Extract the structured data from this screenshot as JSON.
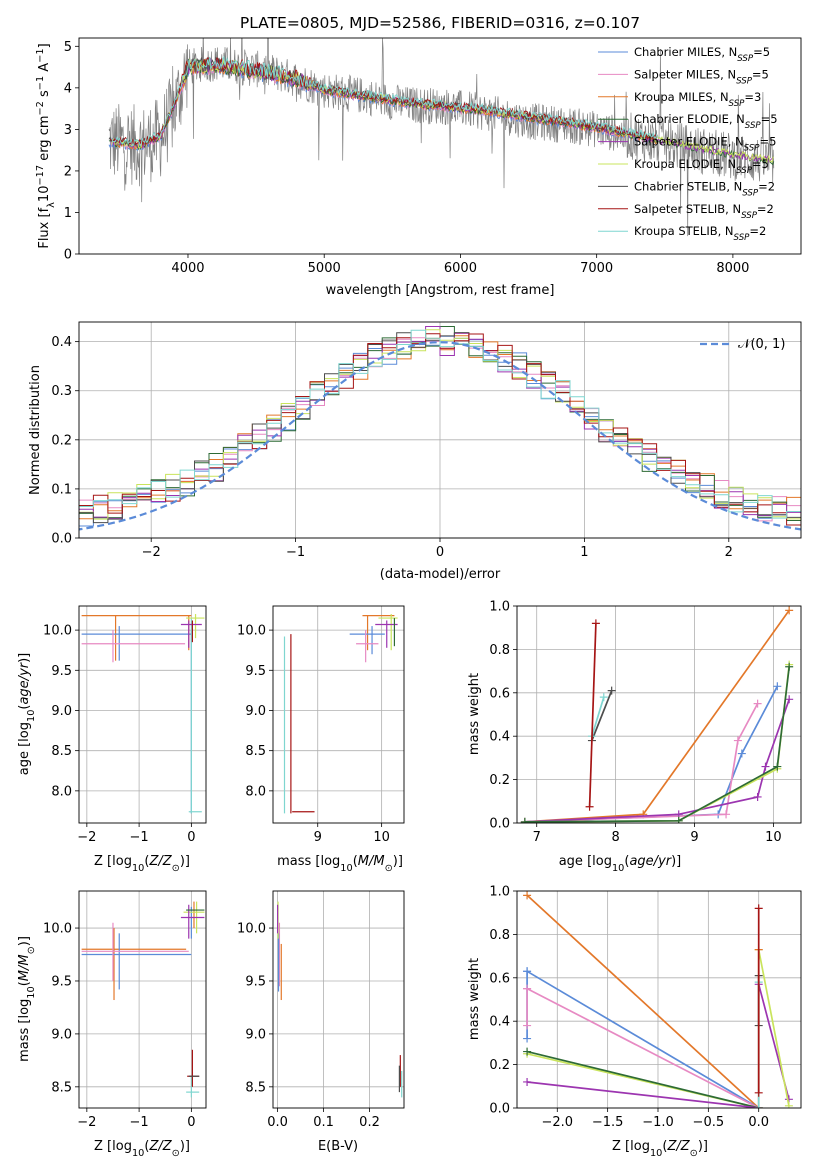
{
  "figure": {
    "title": "PLATE=0805, MJD=52586, FIBERID=0316, z=0.107"
  },
  "colors": {
    "Chabrier MILES": "#5b8bd8",
    "Salpeter MILES": "#e78ac3",
    "Kroupa MILES": "#e3782a",
    "Chabrier ELODIE": "#2e6b36",
    "Salpeter ELODIE": "#9c35b0",
    "Kroupa ELODIE": "#c9e45c",
    "Chabrier STELIB": "#4d4d4d",
    "Salpeter STELIB": "#a61515",
    "Kroupa STELIB": "#7fd6d0",
    "gaussian": "#5b8bd8",
    "observed": "#808080"
  },
  "legend": [
    {
      "name": "Chabrier MILES",
      "nssp": "5"
    },
    {
      "name": "Salpeter MILES",
      "nssp": "5"
    },
    {
      "name": "Kroupa MILES",
      "nssp": "3"
    },
    {
      "name": "Chabrier ELODIE",
      "nssp": "5"
    },
    {
      "name": "Salpeter ELODIE",
      "nssp": "5"
    },
    {
      "name": "Kroupa ELODIE",
      "nssp": "5"
    },
    {
      "name": "Chabrier STELIB",
      "nssp": "2"
    },
    {
      "name": "Salpeter STELIB",
      "nssp": "2"
    },
    {
      "name": "Kroupa STELIB",
      "nssp": "2"
    }
  ],
  "chart_data": [
    {
      "id": "spectrum",
      "type": "line",
      "xlabel": "wavelength [Angstrom, rest frame]",
      "ylabel": "Flux [f_λ 10^-17 erg cm^-2 s^-1 A^-1]",
      "xlim": [
        3200,
        8500
      ],
      "ylim": [
        0,
        5.2
      ],
      "xticks": [
        4000,
        5000,
        6000,
        7000,
        8000
      ],
      "yticks": [
        0,
        1,
        2,
        3,
        4,
        5
      ],
      "grid": false,
      "legend_position": "top-right",
      "observed_anchors": [
        [
          3420,
          2.7
        ],
        [
          3550,
          2.65
        ],
        [
          3650,
          2.6
        ],
        [
          3800,
          2.8
        ],
        [
          3900,
          3.5
        ],
        [
          4000,
          4.5
        ],
        [
          4200,
          4.6
        ],
        [
          4400,
          4.5
        ],
        [
          4600,
          4.4
        ],
        [
          4800,
          4.2
        ],
        [
          5000,
          3.95
        ],
        [
          5300,
          3.8
        ],
        [
          5600,
          3.6
        ],
        [
          5900,
          3.55
        ],
        [
          6200,
          3.4
        ],
        [
          6500,
          3.2
        ],
        [
          6800,
          3.1
        ],
        [
          7000,
          3.0
        ],
        [
          7300,
          2.8
        ],
        [
          7600,
          2.6
        ],
        [
          7900,
          2.4
        ],
        [
          8100,
          2.3
        ],
        [
          8300,
          2.2
        ]
      ],
      "model_anchors": [
        [
          3420,
          2.7
        ],
        [
          3520,
          2.68
        ],
        [
          3650,
          2.62
        ],
        [
          3800,
          2.85
        ],
        [
          3900,
          3.6
        ],
        [
          4000,
          4.5
        ],
        [
          4200,
          4.55
        ],
        [
          4400,
          4.45
        ],
        [
          4600,
          4.35
        ],
        [
          4800,
          4.2
        ],
        [
          5000,
          3.95
        ],
        [
          5300,
          3.8
        ],
        [
          5600,
          3.65
        ],
        [
          5900,
          3.55
        ],
        [
          6200,
          3.45
        ],
        [
          6500,
          3.3
        ],
        [
          6800,
          3.15
        ],
        [
          7000,
          3.05
        ],
        [
          7300,
          2.85
        ],
        [
          7600,
          2.65
        ],
        [
          7900,
          2.45
        ],
        [
          8100,
          2.35
        ],
        [
          8300,
          2.25
        ]
      ]
    },
    {
      "id": "residuals",
      "type": "line",
      "xlabel": "(data-model)/error",
      "ylabel": "Normed distribution",
      "xlim": [
        -2.5,
        2.5
      ],
      "ylim": [
        0,
        0.44
      ],
      "xticks": [
        -2,
        -1,
        0,
        1,
        2
      ],
      "yticks": [
        0.0,
        0.1,
        0.2,
        0.3,
        0.4
      ],
      "grid": true,
      "legend": [
        {
          "name": "𝒩(0, 1)",
          "style": "dashed"
        }
      ],
      "legend_position": "top-right",
      "bin_width": 0.1
    },
    {
      "id": "age-vs-Z",
      "type": "scatter",
      "xlabel": "Z [log10(Z/Z⊙)]",
      "ylabel": "age [log10(age/yr)]",
      "xlim": [
        -2.15,
        0.28
      ],
      "ylim": [
        7.6,
        10.3
      ],
      "xticks": [
        -2,
        -1,
        0
      ],
      "yticks": [
        8.0,
        8.5,
        9.0,
        9.5,
        10.0
      ],
      "grid": true,
      "lines": [
        {
          "color": "#e3782a",
          "h": [
            [
              -2.1,
              0.0,
              10.18
            ]
          ],
          "v": [
            [
              -1.45,
              9.62,
              10.18
            ],
            [
              -0.05,
              9.75,
              10.18
            ]
          ]
        },
        {
          "color": "#5b8bd8",
          "h": [
            [
              -2.1,
              0.0,
              9.95
            ]
          ],
          "v": [
            [
              -1.38,
              9.62,
              10.05
            ],
            [
              0.0,
              7.72,
              10.0
            ]
          ]
        },
        {
          "color": "#e78ac3",
          "h": [
            [
              -2.1,
              -0.12,
              9.83
            ]
          ],
          "v": [
            [
              -1.5,
              9.6,
              10.0
            ]
          ]
        },
        {
          "color": "#7fd6d0",
          "h": [
            [
              -0.05,
              0.2,
              7.74
            ]
          ],
          "v": [
            [
              0.0,
              7.72,
              10.15
            ]
          ]
        },
        {
          "color": "#c9e45c",
          "h": [
            [
              -0.1,
              0.25,
              10.15
            ]
          ],
          "v": [
            [
              0.08,
              9.9,
              10.2
            ]
          ]
        },
        {
          "color": "#9c35b0",
          "h": [
            [
              -0.2,
              0.2,
              10.07
            ]
          ],
          "v": [
            [
              -0.05,
              9.78,
              10.12
            ]
          ]
        },
        {
          "color": "#a61515",
          "v": [
            [
              0.02,
              9.85,
              10.12
            ]
          ]
        }
      ]
    },
    {
      "id": "age-vs-mass",
      "type": "scatter",
      "xlabel": "mass [log10(M/M⊙)]",
      "ylabel": "",
      "xlim": [
        8.3,
        10.35
      ],
      "ylim": [
        7.6,
        10.3
      ],
      "xticks": [
        9,
        10
      ],
      "yticks": [
        8.0,
        8.5,
        9.0,
        9.5,
        10.0
      ],
      "grid": true,
      "lines": [
        {
          "color": "#e3782a",
          "h": [
            [
              9.7,
              10.2,
              10.18
            ]
          ],
          "v": [
            [
              9.78,
              9.75,
              10.18
            ]
          ]
        },
        {
          "color": "#5b8bd8",
          "h": [
            [
              9.5,
              10.05,
              9.95
            ]
          ],
          "v": [
            [
              9.85,
              9.7,
              10.05
            ]
          ]
        },
        {
          "color": "#e78ac3",
          "h": [
            [
              9.6,
              9.95,
              9.83
            ]
          ],
          "v": [
            [
              9.75,
              9.6,
              10.0
            ]
          ]
        },
        {
          "color": "#7fd6d0",
          "v": [
            [
              8.48,
              7.72,
              9.92
            ]
          ]
        },
        {
          "color": "#a61515",
          "h": [
            [
              8.6,
              8.95,
              7.74
            ]
          ],
          "v": [
            [
              8.58,
              7.72,
              9.95
            ]
          ]
        },
        {
          "color": "#c9e45c",
          "h": [
            [
              9.95,
              10.25,
              10.15
            ]
          ],
          "v": [
            [
              10.15,
              9.75,
              10.2
            ]
          ]
        },
        {
          "color": "#9c35b0",
          "h": [
            [
              9.9,
              10.25,
              10.07
            ]
          ],
          "v": [
            [
              10.08,
              9.78,
              10.12
            ]
          ]
        },
        {
          "color": "#2e6b36",
          "v": [
            [
              10.2,
              9.8,
              10.15
            ]
          ]
        }
      ]
    },
    {
      "id": "massweight-vs-age",
      "type": "line",
      "xlabel": "age [log10(age/yr)]",
      "ylabel": "mass weight",
      "xlim": [
        6.75,
        10.35
      ],
      "ylim": [
        0,
        1.0
      ],
      "xticks": [
        7,
        8,
        9,
        10
      ],
      "yticks": [
        0.0,
        0.2,
        0.4,
        0.6,
        0.8,
        1.0
      ],
      "grid": true,
      "series": [
        {
          "color": "#e3782a",
          "x": [
            6.85,
            8.35,
            10.2
          ],
          "y": [
            0.005,
            0.04,
            0.98
          ]
        },
        {
          "color": "#5b8bd8",
          "x": [
            6.85,
            9.3,
            9.6,
            10.05
          ],
          "y": [
            0.005,
            0.04,
            0.32,
            0.63
          ]
        },
        {
          "color": "#e78ac3",
          "x": [
            6.85,
            9.4,
            9.55,
            9.8
          ],
          "y": [
            0.005,
            0.04,
            0.38,
            0.55
          ]
        },
        {
          "color": "#9c35b0",
          "x": [
            6.85,
            8.8,
            9.8,
            9.9,
            10.2
          ],
          "y": [
            0.005,
            0.04,
            0.12,
            0.26,
            0.57
          ]
        },
        {
          "color": "#c9e45c",
          "x": [
            6.85,
            8.8,
            10.05,
            10.2
          ],
          "y": [
            0.005,
            0.01,
            0.25,
            0.73
          ]
        },
        {
          "color": "#2e6b36",
          "x": [
            6.85,
            8.8,
            10.05,
            10.2
          ],
          "y": [
            0.005,
            0.01,
            0.26,
            0.72
          ]
        },
        {
          "color": "#4d4d4d",
          "x": [
            7.7,
            7.95
          ],
          "y": [
            0.38,
            0.61
          ]
        },
        {
          "color": "#7fd6d0",
          "x": [
            7.7,
            7.85
          ],
          "y": [
            0.4,
            0.58
          ]
        },
        {
          "color": "#a61515",
          "x": [
            7.67,
            7.75
          ],
          "y": [
            0.075,
            0.92
          ]
        }
      ]
    },
    {
      "id": "mass-vs-Z",
      "type": "scatter",
      "xlabel": "Z [log10(Z/Z⊙)]",
      "ylabel": "mass [log10(M/M⊙)]",
      "xlim": [
        -2.15,
        0.28
      ],
      "ylim": [
        8.3,
        10.35
      ],
      "xticks": [
        -2,
        -1,
        0
      ],
      "yticks": [
        8.5,
        9.0,
        9.5,
        10.0
      ],
      "grid": true,
      "lines": [
        {
          "color": "#e3782a",
          "h": [
            [
              -2.1,
              -0.1,
              9.8
            ]
          ],
          "v": [
            [
              -1.48,
              9.32,
              10.0
            ],
            [
              0.05,
              10.0,
              10.25
            ]
          ]
        },
        {
          "color": "#5b8bd8",
          "h": [
            [
              -2.1,
              0.0,
              9.75
            ]
          ],
          "v": [
            [
              -1.38,
              9.42,
              9.95
            ],
            [
              0.0,
              9.9,
              10.2
            ]
          ]
        },
        {
          "color": "#e78ac3",
          "h": [
            [
              -2.1,
              -0.05,
              9.78
            ]
          ],
          "v": [
            [
              -1.5,
              9.5,
              10.05
            ]
          ]
        },
        {
          "color": "#7fd6d0",
          "h": [
            [
              -0.1,
              0.15,
              8.45
            ]
          ],
          "v": [
            [
              0.0,
              8.4,
              8.6
            ]
          ]
        },
        {
          "color": "#a61515",
          "h": [
            [
              -0.08,
              0.15,
              8.6
            ]
          ],
          "v": [
            [
              0.02,
              8.5,
              8.85
            ]
          ]
        },
        {
          "color": "#4d4d4d",
          "h": [
            [
              -0.05,
              0.15,
              8.6
            ]
          ]
        },
        {
          "color": "#c9e45c",
          "h": [
            [
              -0.15,
              0.25,
              10.15
            ]
          ],
          "v": [
            [
              0.1,
              9.95,
              10.25
            ]
          ]
        },
        {
          "color": "#9c35b0",
          "h": [
            [
              -0.2,
              0.25,
              10.1
            ]
          ],
          "v": [
            [
              -0.05,
              9.9,
              10.22
            ]
          ]
        },
        {
          "color": "#2e6b36",
          "h": [
            [
              -0.1,
              0.25,
              10.17
            ]
          ]
        }
      ]
    },
    {
      "id": "mass-vs-ebv",
      "type": "scatter",
      "xlabel": "E(B-V)",
      "ylabel": "",
      "xlim": [
        -0.01,
        0.275
      ],
      "ylim": [
        8.3,
        10.35
      ],
      "xticks": [
        0.0,
        0.1,
        0.2
      ],
      "yticks": [
        8.5,
        9.0,
        9.5,
        10.0
      ],
      "grid": true,
      "lines": [
        {
          "color": "#e3782a",
          "v": [
            [
              0.008,
              9.32,
              9.85
            ]
          ]
        },
        {
          "color": "#e78ac3",
          "v": [
            [
              0.004,
              9.45,
              10.05
            ]
          ]
        },
        {
          "color": "#5b8bd8",
          "v": [
            [
              0.002,
              9.4,
              9.95
            ]
          ]
        },
        {
          "color": "#c9e45c",
          "v": [
            [
              0.001,
              9.9,
              10.25
            ]
          ]
        },
        {
          "color": "#9c35b0",
          "v": [
            [
              0.0,
              9.95,
              10.22
            ]
          ]
        },
        {
          "color": "#a61515",
          "v": [
            [
              0.267,
              8.5,
              8.8
            ]
          ]
        },
        {
          "color": "#7fd6d0",
          "v": [
            [
              0.27,
              8.4,
              8.65
            ]
          ]
        },
        {
          "color": "#4d4d4d",
          "v": [
            [
              0.265,
              8.45,
              8.7
            ]
          ]
        }
      ]
    },
    {
      "id": "massweight-vs-Z",
      "type": "line",
      "xlabel": "Z [log10(Z/Z⊙)]",
      "ylabel": "mass weight",
      "xlim": [
        -2.4,
        0.42
      ],
      "ylim": [
        0,
        1.0
      ],
      "xticks": [
        -2.0,
        -1.5,
        -1.0,
        -0.5,
        0.0
      ],
      "yticks": [
        0.0,
        0.2,
        0.4,
        0.6,
        0.8,
        1.0
      ],
      "grid": true,
      "series": [
        {
          "color": "#e3782a",
          "x": [
            -2.3,
            0.0
          ],
          "y": [
            0.98,
            0.0
          ]
        },
        {
          "color": "#5b8bd8",
          "x": [
            -2.3,
            0.0
          ],
          "y": [
            0.63,
            0.0
          ]
        },
        {
          "color": "#e78ac3",
          "x": [
            -2.3,
            0.0
          ],
          "y": [
            0.55,
            0.0
          ]
        },
        {
          "color": "#5b8bd8",
          "x": [
            -2.3,
            -2.3
          ],
          "y": [
            0.32,
            0.63
          ]
        },
        {
          "color": "#e78ac3",
          "x": [
            -2.3,
            -2.3
          ],
          "y": [
            0.38,
            0.55
          ]
        },
        {
          "color": "#c9e45c",
          "x": [
            -2.3,
            0.0
          ],
          "y": [
            0.25,
            0.0
          ]
        },
        {
          "color": "#2e6b36",
          "x": [
            -2.3,
            0.0
          ],
          "y": [
            0.26,
            0.0
          ]
        },
        {
          "color": "#9c35b0",
          "x": [
            -2.3,
            0.0
          ],
          "y": [
            0.12,
            0.0
          ]
        },
        {
          "color": "#9c35b0",
          "x": [
            0.0,
            0.3
          ],
          "y": [
            0.57,
            0.04
          ]
        },
        {
          "color": "#c9e45c",
          "x": [
            0.0,
            0.3
          ],
          "y": [
            0.73,
            0.01
          ]
        },
        {
          "color": "#e3782a",
          "x": [
            0.0,
            0.0
          ],
          "y": [
            0.0,
            0.73
          ]
        },
        {
          "color": "#7fd6d0",
          "x": [
            0.0,
            0.0
          ],
          "y": [
            0.0,
            0.58
          ]
        },
        {
          "color": "#4d4d4d",
          "x": [
            0.0,
            0.0
          ],
          "y": [
            0.38,
            0.61
          ]
        },
        {
          "color": "#a61515",
          "x": [
            0.0,
            0.0
          ],
          "y": [
            0.07,
            0.92
          ]
        }
      ]
    }
  ]
}
